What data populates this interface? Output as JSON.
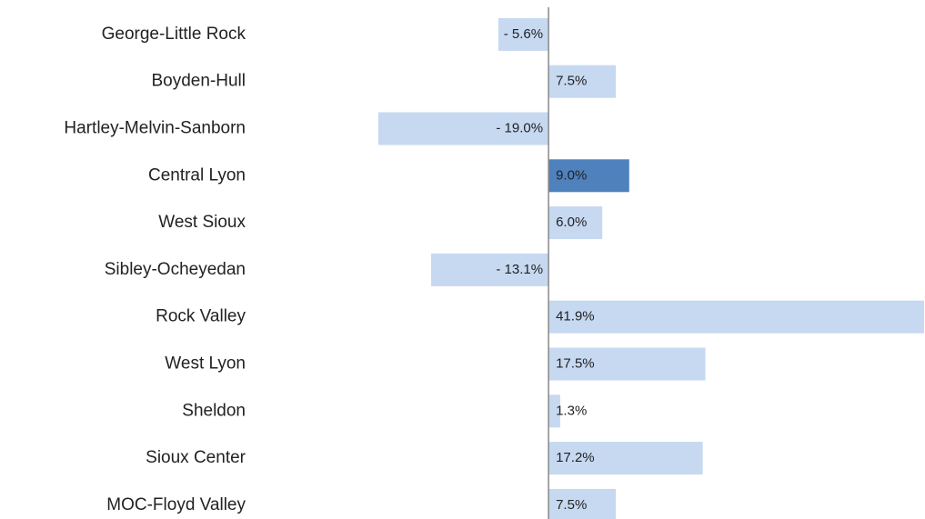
{
  "chart_data": {
    "type": "hbar",
    "categories": [
      "George-Little Rock",
      "Boyden-Hull",
      "Hartley-Melvin-Sanborn",
      "Central Lyon",
      "West Sioux",
      "Sibley-Ocheyedan",
      "Rock Valley",
      "West Lyon",
      "Sheldon",
      "Sioux Center",
      "MOC-Floyd Valley"
    ],
    "values": [
      -5.6,
      7.5,
      -19.0,
      9.0,
      6.0,
      -13.1,
      41.9,
      17.5,
      1.3,
      17.2,
      7.5
    ],
    "value_labels": [
      "- 5.6%",
      "7.5%",
      "- 19.0%",
      "9.0%",
      "6.0%",
      "- 13.1%",
      "41.9%",
      "17.5%",
      "1.3%",
      "17.2%",
      "7.5%"
    ],
    "colors": [
      "#c6d9f1",
      "#c6d9f1",
      "#c6d9f1",
      "#4f81bd",
      "#c6d9f1",
      "#c6d9f1",
      "#c6d9f1",
      "#c6d9f1",
      "#c6d9f1",
      "#c6d9f1",
      "#c6d9f1"
    ],
    "xlim": [
      -20,
      42
    ]
  }
}
